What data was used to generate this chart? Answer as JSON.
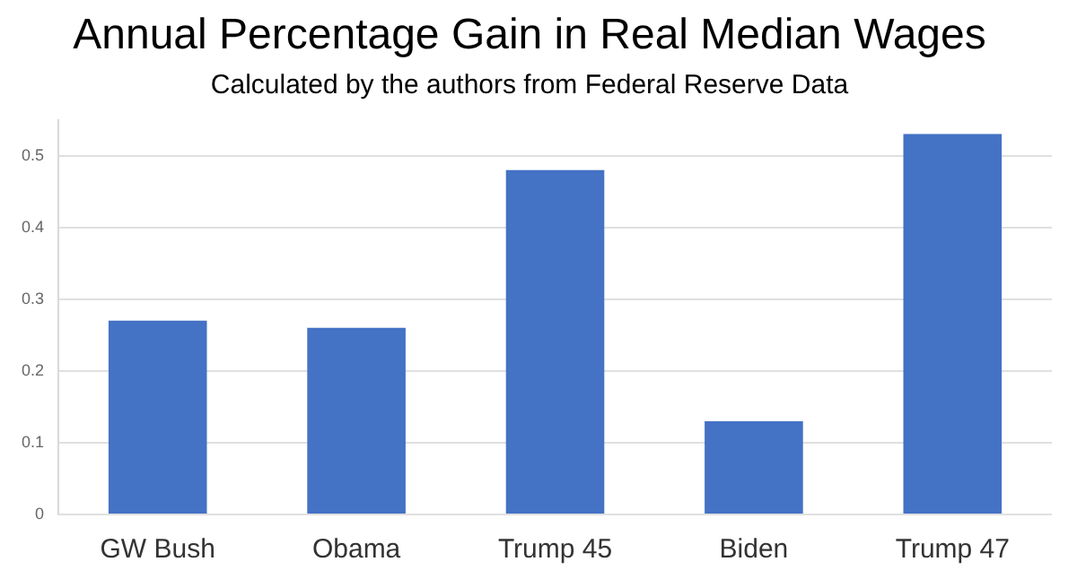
{
  "chart_data": {
    "type": "bar",
    "title": "Annual Percentage Gain in Real Median Wages",
    "subtitle": "Calculated by the authors from Federal Reserve Data",
    "categories": [
      "GW Bush",
      "Obama",
      "Trump 45",
      "Biden",
      "Trump 47"
    ],
    "values": [
      0.27,
      0.26,
      0.48,
      0.13,
      0.53
    ],
    "color": "#4472c4",
    "ylim": [
      0,
      0.55
    ],
    "yticks": [
      0,
      0.1,
      0.2,
      0.3,
      0.4,
      0.5
    ],
    "grid": "y"
  }
}
